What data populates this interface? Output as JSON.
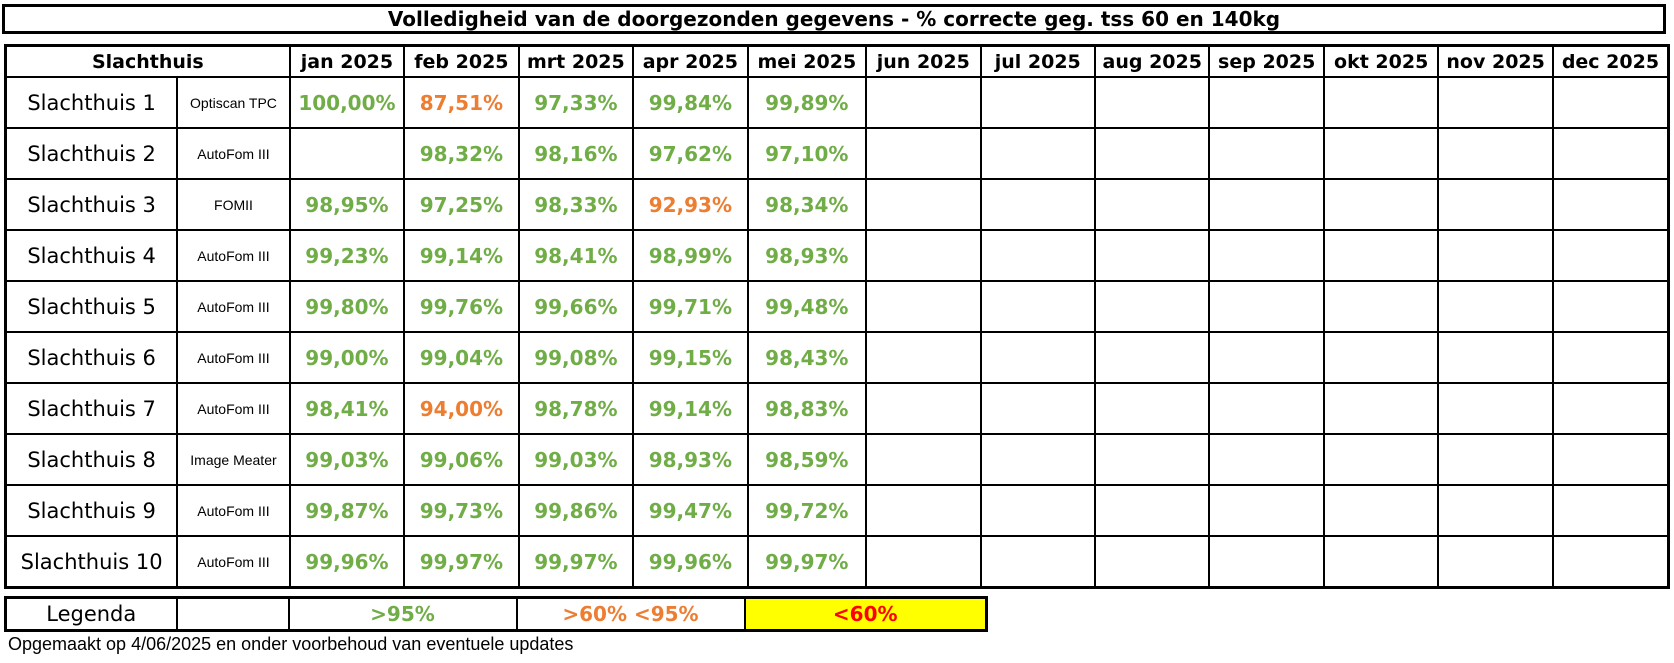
{
  "title": "Volledigheid van de doorgezonden gegevens  - % correcte geg. tss 60 en 140kg",
  "header": {
    "slachthuis": "Slachthuis",
    "months": [
      "jan 2025",
      "feb 2025",
      "mrt 2025",
      "apr 2025",
      "mei 2025",
      "jun 2025",
      "jul 2025",
      "aug 2025",
      "sep 2025",
      "okt 2025",
      "nov 2025",
      "dec 2025"
    ]
  },
  "rows": [
    {
      "name": "Slachthuis 1",
      "device": "Optiscan TPC",
      "values": [
        {
          "text": "100,00%",
          "color": "#70ad47"
        },
        {
          "text": "87,51%",
          "color": "#ed7d31"
        },
        {
          "text": "97,33%",
          "color": "#70ad47"
        },
        {
          "text": "99,84%",
          "color": "#70ad47"
        },
        {
          "text": "99,89%",
          "color": "#70ad47"
        }
      ]
    },
    {
      "name": "Slachthuis 2",
      "device": "AutoFom III",
      "values": [
        {
          "text": "",
          "color": "#70ad47"
        },
        {
          "text": "98,32%",
          "color": "#70ad47"
        },
        {
          "text": "98,16%",
          "color": "#70ad47"
        },
        {
          "text": "97,62%",
          "color": "#70ad47"
        },
        {
          "text": "97,10%",
          "color": "#70ad47"
        }
      ]
    },
    {
      "name": "Slachthuis 3",
      "device": "FOMII",
      "values": [
        {
          "text": "98,95%",
          "color": "#70ad47"
        },
        {
          "text": "97,25%",
          "color": "#70ad47"
        },
        {
          "text": "98,33%",
          "color": "#70ad47"
        },
        {
          "text": "92,93%",
          "color": "#ed7d31"
        },
        {
          "text": "98,34%",
          "color": "#70ad47"
        }
      ]
    },
    {
      "name": "Slachthuis 4",
      "device": "AutoFom III",
      "values": [
        {
          "text": "99,23%",
          "color": "#70ad47"
        },
        {
          "text": "99,14%",
          "color": "#70ad47"
        },
        {
          "text": "98,41%",
          "color": "#70ad47"
        },
        {
          "text": "98,99%",
          "color": "#70ad47"
        },
        {
          "text": "98,93%",
          "color": "#70ad47"
        }
      ]
    },
    {
      "name": "Slachthuis 5",
      "device": "AutoFom III",
      "values": [
        {
          "text": "99,80%",
          "color": "#70ad47"
        },
        {
          "text": "99,76%",
          "color": "#70ad47"
        },
        {
          "text": "99,66%",
          "color": "#70ad47"
        },
        {
          "text": "99,71%",
          "color": "#70ad47"
        },
        {
          "text": "99,48%",
          "color": "#70ad47"
        }
      ]
    },
    {
      "name": "Slachthuis 6",
      "device": "AutoFom III",
      "values": [
        {
          "text": "99,00%",
          "color": "#70ad47"
        },
        {
          "text": "99,04%",
          "color": "#70ad47"
        },
        {
          "text": "99,08%",
          "color": "#70ad47"
        },
        {
          "text": "99,15%",
          "color": "#70ad47"
        },
        {
          "text": "98,43%",
          "color": "#70ad47"
        }
      ]
    },
    {
      "name": "Slachthuis 7",
      "device": "AutoFom III",
      "values": [
        {
          "text": "98,41%",
          "color": "#70ad47"
        },
        {
          "text": "94,00%",
          "color": "#ed7d31"
        },
        {
          "text": "98,78%",
          "color": "#70ad47"
        },
        {
          "text": "99,14%",
          "color": "#70ad47"
        },
        {
          "text": "98,83%",
          "color": "#70ad47"
        }
      ]
    },
    {
      "name": "Slachthuis 8",
      "device": "Image Meater",
      "values": [
        {
          "text": "99,03%",
          "color": "#70ad47"
        },
        {
          "text": "99,06%",
          "color": "#70ad47"
        },
        {
          "text": "99,03%",
          "color": "#70ad47"
        },
        {
          "text": "98,93%",
          "color": "#70ad47"
        },
        {
          "text": "98,59%",
          "color": "#70ad47"
        }
      ]
    },
    {
      "name": "Slachthuis 9",
      "device": "AutoFom III",
      "values": [
        {
          "text": "99,87%",
          "color": "#70ad47"
        },
        {
          "text": "99,73%",
          "color": "#70ad47"
        },
        {
          "text": "99,86%",
          "color": "#70ad47"
        },
        {
          "text": "99,47%",
          "color": "#70ad47"
        },
        {
          "text": "99,72%",
          "color": "#70ad47"
        }
      ]
    },
    {
      "name": "Slachthuis 10",
      "device": "AutoFom III",
      "values": [
        {
          "text": "99,96%",
          "color": "#70ad47"
        },
        {
          "text": "99,97%",
          "color": "#70ad47"
        },
        {
          "text": "99,97%",
          "color": "#70ad47"
        },
        {
          "text": "99,96%",
          "color": "#70ad47"
        },
        {
          "text": "99,97%",
          "color": "#70ad47"
        }
      ]
    }
  ],
  "legend": {
    "label": "Legenda",
    "green": ">95%",
    "orange": ">60% <95%",
    "red": "<60%"
  },
  "colors": {
    "green": "#70ad47",
    "orange": "#ed7d31",
    "red": "#ff0000",
    "highlight": "#ffff00"
  },
  "footnote": "Opgemaakt op 4/06/2025 en onder voorbehoud van eventuele updates"
}
